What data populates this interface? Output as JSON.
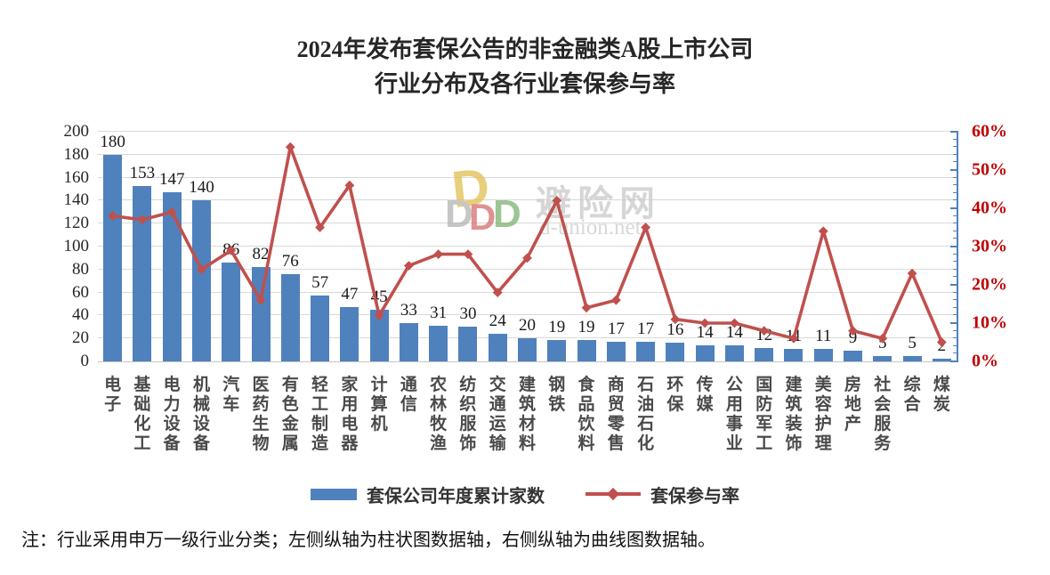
{
  "title": {
    "line1": "2024年发布套保公告的非金融类A股上市公司",
    "line2": "行业分布及各行业套保参与率"
  },
  "watermark": {
    "d": "D",
    "site_name": "避险网",
    "site_url": "d-union.net"
  },
  "note": "注：行业采用申万一级行业分类；左侧纵轴为柱状图数据轴，右侧纵轴为曲线图数据轴。",
  "colors": {
    "bar": "#4f81bd",
    "line": "#c0504d",
    "right_axis_line": "#4f81bd",
    "right_axis_label": "#c00000",
    "gridline": "#d9d9d9",
    "data_label": "#1a1a1a",
    "category_label": "#4a4a4a"
  },
  "chart_data": {
    "type": "combo-bar-line",
    "title": "2024年发布套保公告的非金融类A股上市公司行业分布及各行业套保参与率",
    "categories": [
      "电子",
      "基础化工",
      "电力设备",
      "机械设备",
      "汽车",
      "医药生物",
      "有色金属",
      "轻工制造",
      "家用电器",
      "计算机",
      "通信",
      "农林牧渔",
      "纺织服饰",
      "交通运输",
      "建筑材料",
      "钢铁",
      "食品饮料",
      "商贸零售",
      "石油石化",
      "环保",
      "传媒",
      "公用事业",
      "国防军工",
      "建筑装饰",
      "美容护理",
      "房地产",
      "社会服务",
      "综合",
      "煤炭"
    ],
    "series": [
      {
        "name": "套保公司年度累计家数",
        "type": "bar",
        "axis": "left",
        "values": [
          180,
          153,
          147,
          140,
          86,
          82,
          76,
          57,
          47,
          45,
          33,
          31,
          30,
          24,
          20,
          19,
          19,
          17,
          17,
          16,
          14,
          14,
          12,
          11,
          11,
          9,
          5,
          5,
          2
        ]
      },
      {
        "name": "套保参与率",
        "type": "line",
        "axis": "right",
        "unit": "%",
        "values": [
          38,
          37,
          39,
          24,
          29,
          16,
          56,
          35,
          46,
          12,
          25,
          28,
          28,
          18,
          27,
          42,
          14,
          16,
          35,
          11,
          10,
          10,
          8,
          6,
          34,
          8,
          6,
          23,
          5
        ]
      }
    ],
    "left_axis": {
      "min": 0,
      "max": 200,
      "step": 20,
      "ticks": [
        0,
        20,
        40,
        60,
        80,
        100,
        120,
        140,
        160,
        180,
        200
      ]
    },
    "right_axis": {
      "min": 0,
      "max": 60,
      "step": 10,
      "minor_step": 2,
      "unit": "%",
      "ticks": [
        "0%",
        "10%",
        "20%",
        "30%",
        "40%",
        "50%",
        "60%"
      ]
    },
    "grid": true,
    "legend_position": "bottom",
    "data_labels": "above-bars"
  }
}
